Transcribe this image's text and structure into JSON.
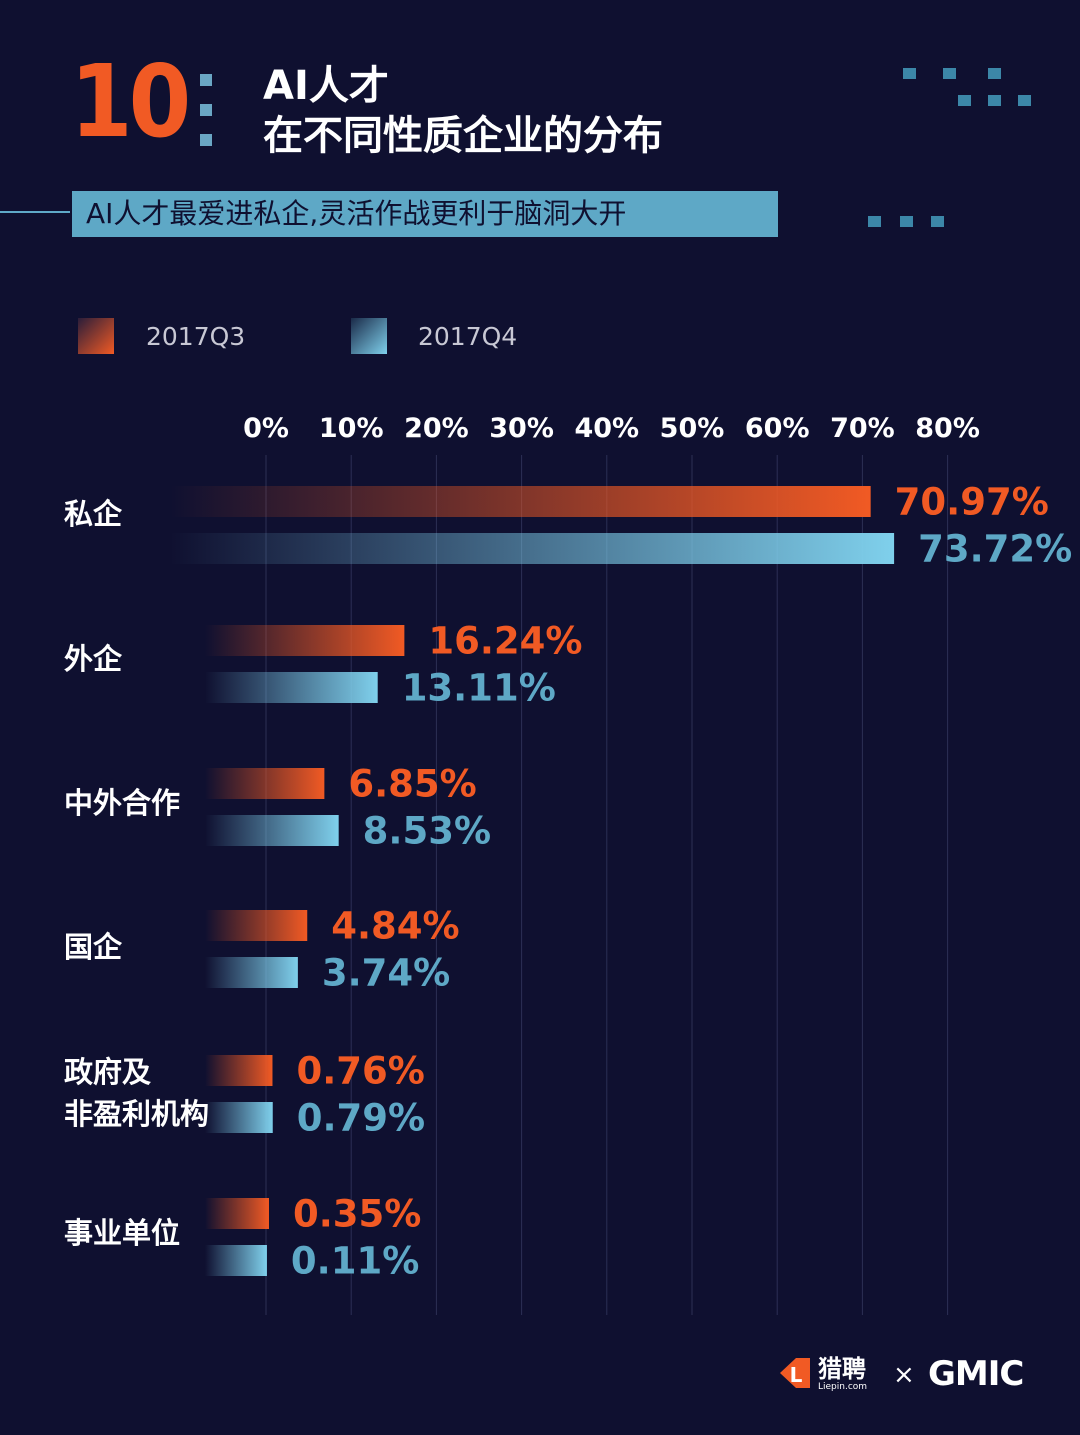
{
  "header": {
    "number": "10",
    "title_line1": "AI人才",
    "title_line2": "在不同性质企业的分布",
    "subtitle": "AI人才最爱进私企,灵活作战更利于脑洞大开"
  },
  "colors": {
    "background": "#0f1030",
    "q3": "#f15a24",
    "q4": "#7fd0ec",
    "q4_text": "#5ea8c6",
    "accent_blue": "#5ea8c6"
  },
  "footer": {
    "brand1": "猎聘",
    "brand1_sub": "Liepin.com",
    "times": "×",
    "brand2": "GMIC"
  },
  "chart_data": {
    "type": "bar",
    "orientation": "horizontal",
    "categories": [
      "私企",
      "外企",
      "中外合作",
      "国企",
      "政府及\n非盈利机构",
      "事业单位"
    ],
    "series": [
      {
        "name": "2017Q3",
        "values": [
          70.97,
          16.24,
          6.85,
          4.84,
          0.76,
          0.35
        ],
        "labels": [
          "70.97%",
          "16.24%",
          "6.85%",
          "4.84%",
          "0.76%",
          "0.35%"
        ]
      },
      {
        "name": "2017Q4",
        "values": [
          73.72,
          13.11,
          8.53,
          3.74,
          0.79,
          0.11
        ],
        "labels": [
          "73.72%",
          "13.11%",
          "8.53%",
          "3.74%",
          "0.79%",
          "0.11%"
        ]
      }
    ],
    "x_ticks": [
      "0%",
      "10%",
      "20%",
      "30%",
      "40%",
      "50%",
      "60%",
      "70%",
      "80%"
    ],
    "xlim": [
      0,
      80
    ],
    "unit": "%",
    "grid": true,
    "legend": "top-left"
  }
}
